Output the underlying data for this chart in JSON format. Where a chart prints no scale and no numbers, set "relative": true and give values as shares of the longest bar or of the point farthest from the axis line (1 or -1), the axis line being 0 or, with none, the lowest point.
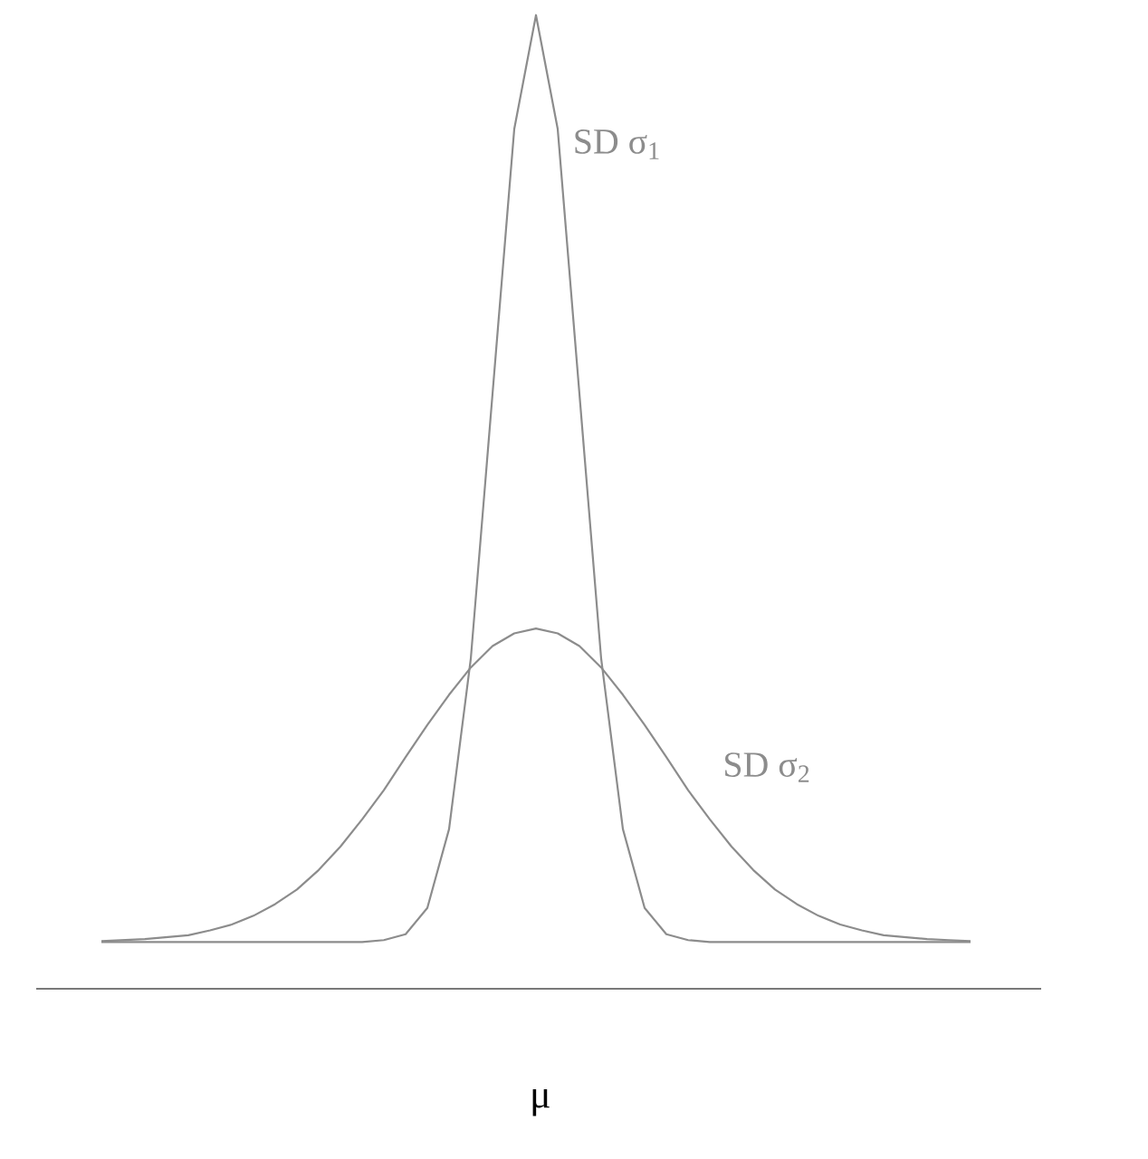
{
  "chart_data": {
    "type": "line",
    "relative": true,
    "xlabel": "μ",
    "categories": [
      null,
      null,
      null,
      null,
      null,
      null,
      null,
      null,
      null,
      null,
      null,
      null,
      null,
      null,
      null,
      null,
      null,
      null,
      null,
      null,
      null,
      null,
      null,
      null,
      null,
      null,
      null,
      null,
      null,
      null,
      null,
      null,
      null,
      null,
      null,
      null,
      null,
      null,
      null,
      null,
      null,
      null,
      null,
      null,
      null,
      null,
      null
    ],
    "series": [
      {
        "name": "SD σ$_{1}$",
        "color": "#8c8c8c",
        "values": [
          null,
          null,
          null,
          0.048,
          0.048,
          0.048,
          0.048,
          0.048,
          0.048,
          0.048,
          0.048,
          0.048,
          0.048,
          0.048,
          0.048,
          0.048,
          0.05,
          0.056,
          0.083,
          0.164,
          0.339,
          0.611,
          0.883,
          1,
          0.883,
          0.611,
          0.339,
          0.164,
          0.083,
          0.056,
          0.05,
          0.048,
          0.048,
          0.048,
          0.048,
          0.048,
          0.048,
          0.048,
          0.048,
          0.048,
          0.048,
          0.048,
          0.048,
          0.048,
          null,
          null,
          null
        ]
      },
      {
        "name": "SD σ$_{2}$",
        "color": "#8c8c8c",
        "values": [
          null,
          null,
          null,
          0.049,
          0.05,
          0.051,
          0.053,
          0.055,
          0.06,
          0.066,
          0.075,
          0.087,
          0.102,
          0.122,
          0.146,
          0.174,
          0.204,
          0.238,
          0.271,
          0.302,
          0.33,
          0.352,
          0.365,
          0.37,
          0.365,
          0.352,
          0.33,
          0.302,
          0.271,
          0.238,
          0.204,
          0.174,
          0.146,
          0.122,
          0.102,
          0.087,
          0.075,
          0.066,
          0.06,
          0.055,
          0.053,
          0.051,
          0.05,
          0.049,
          null,
          null,
          null
        ]
      }
    ]
  }
}
